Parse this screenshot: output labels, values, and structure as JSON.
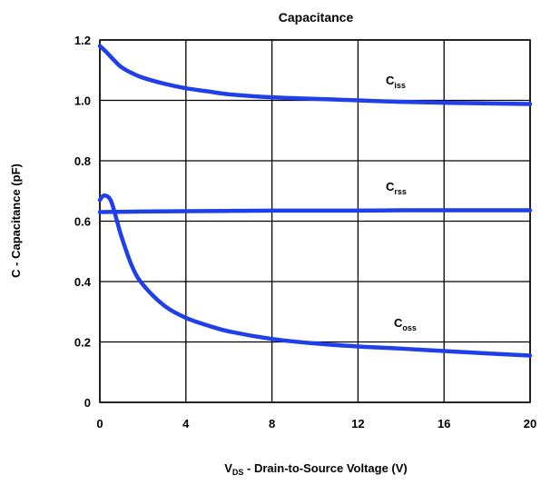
{
  "chart_data": {
    "type": "line",
    "title": "Capacitance",
    "xlabel": {
      "main": "V",
      "sub": "DS",
      "rest": " - Drain-to-Source Voltage (V)"
    },
    "ylabel": "C - Capacitance (pF)",
    "xlim": [
      0,
      20
    ],
    "ylim": [
      0,
      1.2
    ],
    "xticks": [
      0,
      4,
      8,
      12,
      16,
      20
    ],
    "xtick_labels": [
      "0",
      "4",
      "8",
      "12",
      "16",
      "20"
    ],
    "yticks": [
      0,
      0.2,
      0.4,
      0.6,
      0.8,
      1.0,
      1.2
    ],
    "ytick_labels": [
      "0",
      "0.2",
      "0.4",
      "0.6",
      "0.8",
      "1.0",
      "1.2"
    ],
    "grid": true,
    "series": [
      {
        "name": "Ciss",
        "label_main": "C",
        "label_sub": "iss",
        "color": "#1f3fe8",
        "x": [
          0,
          0.3,
          0.7,
          1,
          1.5,
          2,
          3,
          4,
          5,
          6,
          8,
          10,
          12,
          14,
          16,
          18,
          20
        ],
        "y": [
          1.18,
          1.16,
          1.13,
          1.11,
          1.09,
          1.075,
          1.055,
          1.04,
          1.03,
          1.02,
          1.01,
          1.005,
          1.0,
          0.995,
          0.992,
          0.99,
          0.988
        ]
      },
      {
        "name": "Crss",
        "label_main": "C",
        "label_sub": "rss",
        "color": "#1f3fe8",
        "x": [
          0,
          2,
          4,
          6,
          8,
          10,
          12,
          14,
          16,
          18,
          20
        ],
        "y": [
          0.63,
          0.632,
          0.633,
          0.634,
          0.635,
          0.635,
          0.635,
          0.636,
          0.636,
          0.636,
          0.636
        ]
      },
      {
        "name": "Coss",
        "label_main": "C",
        "label_sub": "oss",
        "color": "#1f3fe8",
        "x": [
          0,
          0.2,
          0.5,
          0.8,
          1,
          1.5,
          2,
          3,
          4,
          5,
          6,
          8,
          10,
          12,
          14,
          16,
          18,
          20
        ],
        "y": [
          0.67,
          0.685,
          0.67,
          0.6,
          0.55,
          0.45,
          0.39,
          0.32,
          0.28,
          0.255,
          0.235,
          0.21,
          0.195,
          0.185,
          0.178,
          0.17,
          0.162,
          0.155
        ]
      }
    ]
  }
}
